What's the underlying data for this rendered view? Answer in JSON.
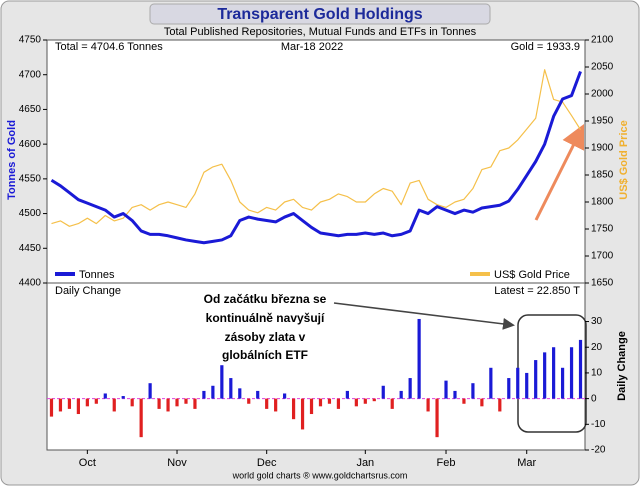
{
  "chart_data": [
    {
      "type": "line",
      "title": "Transparent Gold Holdings",
      "subtitle": "Total Published Repositories, Mutual Funds and ETFs in Tonnes",
      "annotations": [
        "Total = 4704.6 Tonnes",
        "Mar-18  2022",
        "Gold = 1933.9"
      ],
      "ylabel": "Tonnes of Gold",
      "y2label": "US$ Gold Price",
      "ylim": [
        4400,
        4750
      ],
      "yticks": [
        4400,
        4450,
        4500,
        4550,
        4600,
        4650,
        4700,
        4750
      ],
      "y2lim": [
        1650,
        2100
      ],
      "y2ticks": [
        1650,
        1700,
        1750,
        1800,
        1850,
        1900,
        1950,
        2000,
        2050,
        2100
      ],
      "series": [
        {
          "name": "Tonnes",
          "color": "#1a1ad6",
          "values": [
            4548,
            4540,
            4530,
            4520,
            4515,
            4510,
            4505,
            4495,
            4500,
            4490,
            4475,
            4470,
            4470,
            4468,
            4465,
            4462,
            4460,
            4458,
            4460,
            4462,
            4468,
            4490,
            4495,
            4492,
            4490,
            4488,
            4495,
            4500,
            4490,
            4480,
            4472,
            4470,
            4468,
            4470,
            4470,
            4472,
            4470,
            4472,
            4468,
            4470,
            4475,
            4505,
            4500,
            4510,
            4505,
            4500,
            4505,
            4502,
            4508,
            4510,
            4512,
            4518,
            4535,
            4555,
            4575,
            4600,
            4640,
            4665,
            4670,
            4704.6
          ]
        },
        {
          "name": "US$ Gold Price",
          "color": "#f5c04a",
          "axis": "y2",
          "values": [
            1760,
            1765,
            1755,
            1760,
            1770,
            1760,
            1775,
            1765,
            1770,
            1790,
            1795,
            1785,
            1795,
            1800,
            1795,
            1790,
            1815,
            1855,
            1865,
            1870,
            1840,
            1800,
            1785,
            1780,
            1790,
            1785,
            1800,
            1805,
            1790,
            1785,
            1800,
            1805,
            1815,
            1810,
            1800,
            1800,
            1815,
            1825,
            1820,
            1795,
            1835,
            1840,
            1805,
            1795,
            1790,
            1800,
            1805,
            1825,
            1860,
            1865,
            1895,
            1900,
            1915,
            1935,
            1955,
            2045,
            1990,
            1985,
            1960,
            1933.9
          ]
        }
      ]
    },
    {
      "type": "bar",
      "annotations": [
        "Daily Change",
        "Latest = 22.850 T"
      ],
      "callout": [
        "Od začátku března se",
        "kontinuálně navyšují",
        "zásoby zlata v",
        "globálních ETF"
      ],
      "y2label": "Daily Change",
      "footer": "world gold charts ® www.goldchartsrus.com",
      "categories": [
        null,
        null,
        null,
        null,
        "Oct",
        null,
        null,
        null,
        null,
        null,
        null,
        null,
        null,
        null,
        "Nov",
        null,
        null,
        null,
        null,
        null,
        null,
        null,
        null,
        null,
        "Dec",
        null,
        null,
        null,
        null,
        null,
        null,
        null,
        null,
        null,
        null,
        "Jan",
        null,
        null,
        null,
        null,
        null,
        null,
        null,
        null,
        "Feb",
        null,
        null,
        null,
        null,
        null,
        null,
        null,
        null,
        "Mar",
        null,
        null,
        null,
        null,
        null,
        null
      ],
      "values": [
        -7,
        -5,
        -4,
        -6,
        -3,
        -2,
        2,
        -5,
        1,
        -3,
        -15,
        6,
        -4,
        -5,
        -3,
        -2,
        -4,
        3,
        5,
        13,
        8,
        4,
        -2,
        3,
        -4,
        -5,
        2,
        -8,
        -12,
        -6,
        -3,
        -2,
        -4,
        3,
        -3,
        -2,
        -1,
        5,
        -4,
        3,
        8,
        31,
        -5,
        -15,
        7,
        3,
        -2,
        6,
        -3,
        12,
        -5,
        8,
        12,
        10,
        15,
        18,
        20,
        12,
        20,
        22.85
      ],
      "positive_color": "#1a1ad6",
      "negative_color": "#e02020",
      "ylim": [
        -20,
        45
      ],
      "yticks": [
        -20,
        -10,
        0,
        10,
        20,
        30
      ]
    }
  ]
}
